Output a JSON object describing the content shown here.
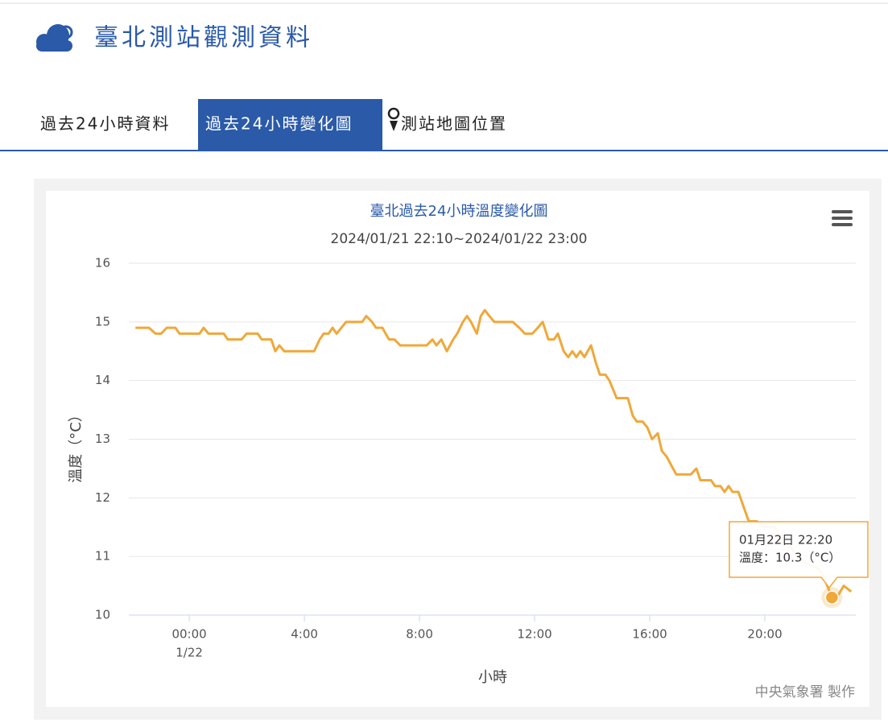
{
  "header": {
    "title": "臺北測站觀測資料"
  },
  "tabs": [
    "過去24小時資料",
    "過去24小時變化圖",
    "測站地圖位置"
  ],
  "chart_data": {
    "type": "line",
    "title": "臺北過去24小時溫度變化圖",
    "subtitle": "2024/01/21 22:10~2024/01/22 23:00",
    "x_label": "小時",
    "y_label": "溫度（°C）",
    "credit": "中央氣象署 製作",
    "xlim": [
      -2.1,
      23.16
    ],
    "ylim": [
      10,
      16
    ],
    "xticks": [
      {
        "value": 0,
        "label": "00:00"
      },
      {
        "value": 4,
        "label": "4:00"
      },
      {
        "value": 8,
        "label": "8:00"
      },
      {
        "value": 12,
        "label": "12:00"
      },
      {
        "value": 16,
        "label": "16:00"
      },
      {
        "value": 20,
        "label": "20:00"
      }
    ],
    "xtick_date": "1/22",
    "yticks": [
      10,
      11,
      12,
      13,
      14,
      15,
      16
    ],
    "grid": true,
    "series": [
      {
        "name": "溫度",
        "color": "#f0a83a",
        "x": [
          -1.87,
          -1.4,
          -1.17,
          -0.98,
          -0.78,
          -0.48,
          -0.34,
          0.36,
          0.5,
          0.67,
          1.2,
          1.34,
          1.82,
          1.99,
          2.38,
          2.52,
          2.85,
          2.99,
          3.13,
          3.3,
          4.34,
          4.53,
          4.67,
          4.84,
          4.98,
          5.12,
          5.45,
          6.01,
          6.15,
          6.35,
          6.49,
          6.71,
          6.94,
          7.13,
          7.33,
          8.25,
          8.45,
          8.59,
          8.76,
          8.95,
          9.17,
          9.31,
          9.51,
          9.65,
          9.79,
          9.99,
          10.13,
          10.27,
          10.43,
          10.6,
          11.24,
          11.47,
          11.66,
          11.92,
          12.11,
          12.28,
          12.48,
          12.67,
          12.81,
          13.01,
          13.17,
          13.31,
          13.45,
          13.59,
          13.73,
          13.96,
          14.13,
          14.27,
          14.46,
          14.6,
          14.85,
          15.24,
          15.41,
          15.55,
          15.75,
          15.92,
          16.08,
          16.28,
          16.42,
          16.59,
          16.92,
          17.43,
          17.62,
          17.76,
          18.13,
          18.27,
          18.46,
          18.6,
          18.74,
          18.88,
          19.08,
          19.44,
          19.72,
          19.94,
          20.34,
          20.56,
          20.98,
          21.4,
          21.82,
          22.01,
          22.33,
          22.5,
          22.74,
          23.0
        ],
        "values": [
          14.9,
          14.9,
          14.8,
          14.8,
          14.9,
          14.9,
          14.8,
          14.8,
          14.9,
          14.8,
          14.8,
          14.7,
          14.7,
          14.8,
          14.8,
          14.7,
          14.7,
          14.5,
          14.6,
          14.5,
          14.5,
          14.7,
          14.8,
          14.8,
          14.9,
          14.8,
          15.0,
          15.0,
          15.1,
          15.0,
          14.9,
          14.9,
          14.7,
          14.7,
          14.6,
          14.6,
          14.7,
          14.6,
          14.7,
          14.5,
          14.7,
          14.8,
          15.0,
          15.1,
          15.0,
          14.8,
          15.1,
          15.2,
          15.1,
          15.0,
          15.0,
          14.9,
          14.8,
          14.8,
          14.9,
          15.0,
          14.7,
          14.7,
          14.8,
          14.5,
          14.4,
          14.5,
          14.4,
          14.5,
          14.4,
          14.6,
          14.3,
          14.1,
          14.1,
          14.0,
          13.7,
          13.7,
          13.4,
          13.3,
          13.3,
          13.2,
          13.0,
          13.1,
          12.8,
          12.7,
          12.4,
          12.4,
          12.5,
          12.3,
          12.3,
          12.2,
          12.2,
          12.1,
          12.2,
          12.1,
          12.1,
          11.6,
          11.6,
          11.5,
          11.5,
          11.3,
          11.1,
          10.9,
          10.8,
          10.7,
          10.3,
          10.3,
          10.5,
          10.4
        ]
      }
    ],
    "tooltip": {
      "point": 100,
      "time": "01月22日 22:20",
      "text": "溫度：10.3（°C）"
    }
  }
}
